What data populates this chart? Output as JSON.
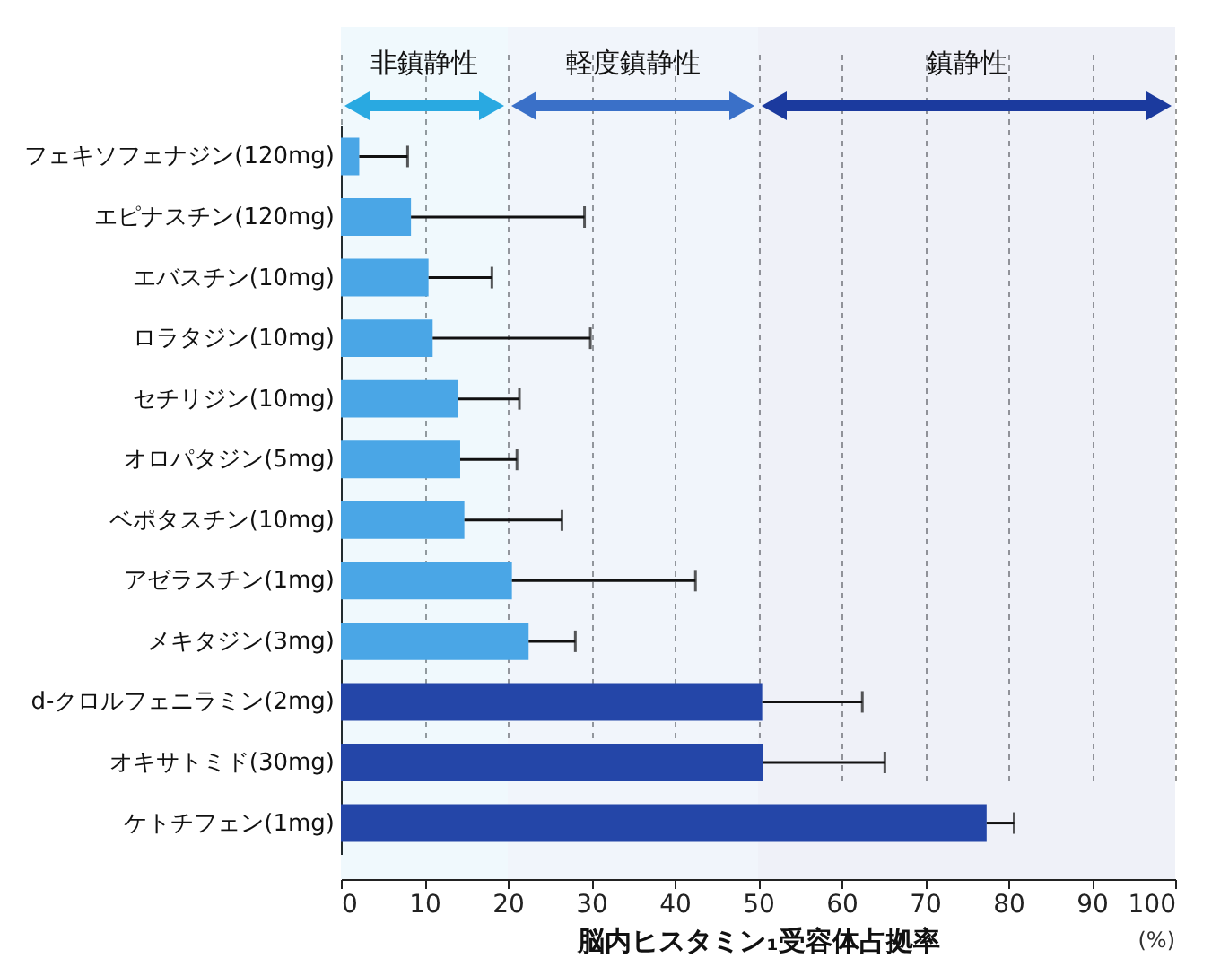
{
  "chart_data": {
    "type": "bar",
    "orientation": "horizontal",
    "xlabel": "脳内ヒスタミン₁受容体占拠率",
    "categories": [
      "フェキソフェナジン(120mg)",
      "エピナスチン(120mg)",
      "エバスチン(10mg)",
      "ロラタジン(10mg)",
      "セチリジン(10mg)",
      "オロパタジン(5mg)",
      "ベポタスチン(10mg)",
      "アゼラスチン(1mg)",
      "メキタジン(3mg)",
      "d-クロルフェニラミン(2mg)",
      "オキサトミド(30mg)",
      "ケトチフェン(1mg)"
    ],
    "values": [
      2.2,
      8.4,
      10.5,
      11.0,
      14.0,
      14.3,
      14.8,
      20.5,
      22.5,
      50.5,
      50.6,
      77.4
    ],
    "errors": [
      [
        2.2,
        8.0
      ],
      [
        8.4,
        29.2
      ],
      [
        10.5,
        18.1
      ],
      [
        11.0,
        29.9
      ],
      [
        14.0,
        21.4
      ],
      [
        14.3,
        21.1
      ],
      [
        14.8,
        26.5
      ],
      [
        20.5,
        42.5
      ],
      [
        22.5,
        28.1
      ],
      [
        50.5,
        62.5
      ],
      [
        50.6,
        65.2
      ],
      [
        77.4,
        80.7
      ]
    ],
    "colors": [
      "#4aa6e6",
      "#4aa6e6",
      "#4aa6e6",
      "#4aa6e6",
      "#4aa6e6",
      "#4aa6e6",
      "#4aa6e6",
      "#4aa6e6",
      "#4aa6e6",
      "#2446a8",
      "#2446a8",
      "#2446a8"
    ],
    "xlim": [
      0,
      100
    ],
    "xticks": [
      0,
      10,
      20,
      30,
      40,
      50,
      60,
      70,
      80,
      90,
      100
    ],
    "grid": "x",
    "bands": [
      {
        "axis": "x",
        "from": 0,
        "to": 20,
        "label": "非鎮静性",
        "color": "#29a9e1"
      },
      {
        "axis": "x",
        "from": 20,
        "to": 50,
        "label": "軽度鎮静性",
        "color": "#3a70c8"
      },
      {
        "axis": "x",
        "from": 50,
        "to": 100,
        "label": "鎮静性",
        "color": "#1b3a9e"
      }
    ],
    "annotations": [
      "(%)"
    ]
  }
}
